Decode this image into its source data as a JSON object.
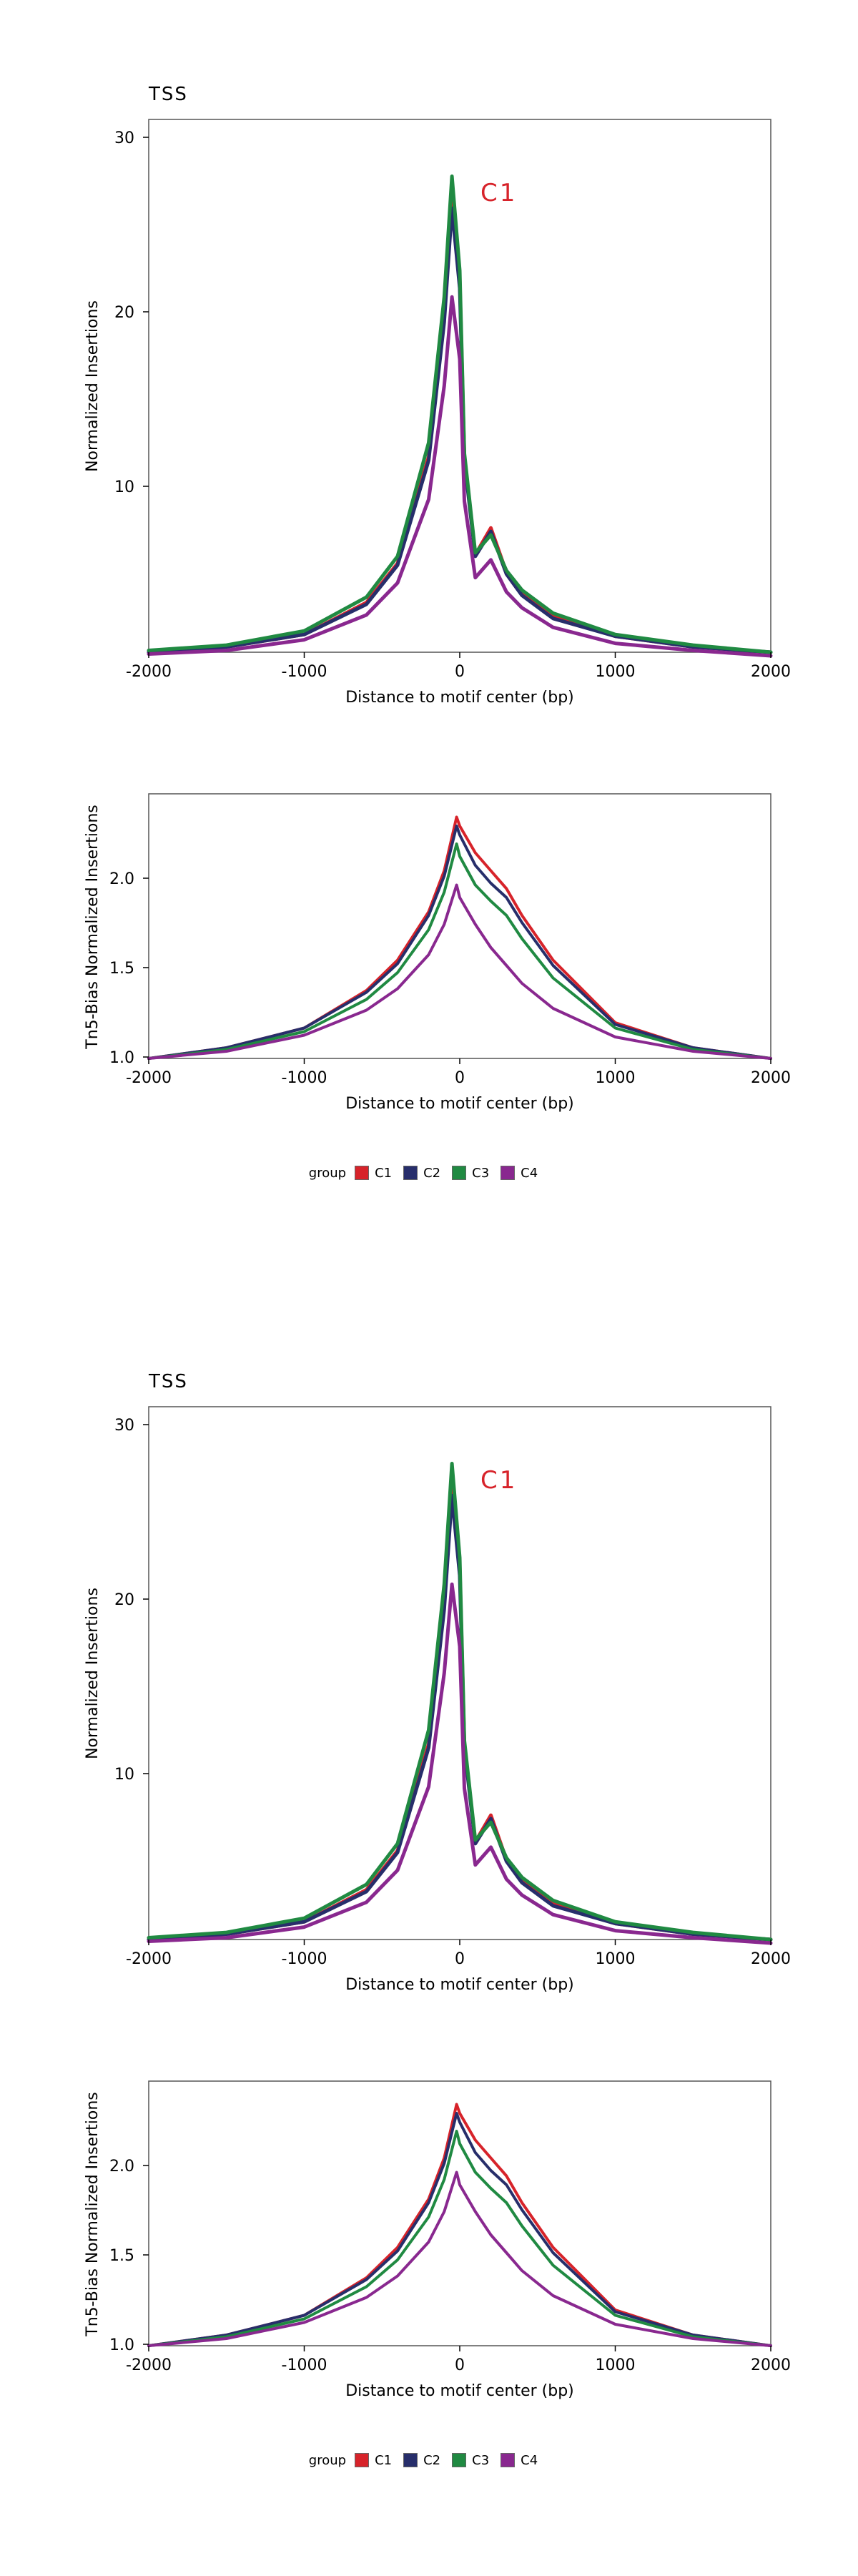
{
  "colors": {
    "C1": "#d7232a",
    "C2": "#272e6b",
    "C3": "#208a42",
    "C4": "#89288f"
  },
  "legend": {
    "title": "group",
    "items": [
      {
        "label": "C1",
        "color": "#d7232a"
      },
      {
        "label": "C2",
        "color": "#272e6b"
      },
      {
        "label": "C3",
        "color": "#208a42"
      },
      {
        "label": "C4",
        "color": "#89288f"
      }
    ]
  },
  "panels": [
    {
      "title": "TSS",
      "annotation": "C1",
      "annotation_color": "#d7232a",
      "top": {
        "xlabel": "Distance to motif center (bp)",
        "ylabel": "Normalized Insertions",
        "xticks": [
          "-2000",
          "-1000",
          "0",
          "1000",
          "2000"
        ],
        "yticks": [
          "10",
          "20",
          "30"
        ]
      },
      "bottom": {
        "xlabel": "Distance to motif center (bp)",
        "ylabel": "Tn5-Bias Normalized Insertions",
        "xticks": [
          "-2000",
          "-1000",
          "0",
          "1000",
          "2000"
        ],
        "yticks": [
          "1.0",
          "1.5",
          "2.0"
        ]
      },
      "legend": {
        "title": "group",
        "items": [
          "C1",
          "C2",
          "C3",
          "C4"
        ]
      }
    },
    {
      "title": "TSS",
      "annotation": "C1",
      "annotation_color": "#d7232a",
      "top": {
        "xlabel": "Distance to motif center (bp)",
        "ylabel": "Normalized Insertions",
        "xticks": [
          "-2000",
          "-1000",
          "0",
          "1000",
          "2000"
        ],
        "yticks": [
          "10",
          "20",
          "30"
        ]
      },
      "bottom": {
        "xlabel": "Distance to motif center (bp)",
        "ylabel": "Tn5-Bias Normalized Insertions",
        "xticks": [
          "-2000",
          "-1000",
          "0",
          "1000",
          "2000"
        ],
        "yticks": [
          "1.0",
          "1.5",
          "2.0"
        ]
      },
      "legend": {
        "title": "group",
        "items": [
          "C1",
          "C2",
          "C3",
          "C4"
        ]
      }
    }
  ],
  "chart_data": [
    {
      "type": "line",
      "title": "TSS",
      "xlabel": "Distance to motif center (bp)",
      "ylabel": "Normalized Insertions",
      "xlim": [
        -2000,
        2000
      ],
      "ylim": [
        1,
        31
      ],
      "x": [
        -2000,
        -1500,
        -1000,
        -600,
        -400,
        -200,
        -100,
        -50,
        0,
        30,
        100,
        200,
        300,
        400,
        600,
        1000,
        1500,
        2000
      ],
      "series": [
        {
          "name": "C1",
          "values": [
            1.0,
            1.3,
            2.0,
            3.8,
            6.0,
            12.0,
            20.0,
            26.5,
            22.0,
            12.0,
            6.5,
            8.0,
            5.5,
            4.3,
            3.0,
            1.9,
            1.3,
            1.0
          ]
        },
        {
          "name": "C2",
          "values": [
            1.0,
            1.3,
            2.0,
            3.7,
            5.9,
            11.8,
            19.6,
            26.0,
            21.5,
            11.8,
            6.4,
            7.8,
            5.4,
            4.2,
            2.9,
            1.9,
            1.3,
            1.0
          ]
        },
        {
          "name": "C3",
          "values": [
            1.1,
            1.4,
            2.2,
            4.1,
            6.4,
            12.8,
            21.0,
            27.8,
            22.5,
            12.2,
            6.6,
            7.6,
            5.6,
            4.5,
            3.2,
            2.0,
            1.4,
            1.0
          ]
        },
        {
          "name": "C4",
          "values": [
            0.9,
            1.1,
            1.7,
            3.1,
            4.9,
            9.6,
            16.0,
            21.0,
            17.5,
            9.5,
            5.2,
            6.2,
            4.4,
            3.5,
            2.4,
            1.5,
            1.1,
            0.8
          ]
        }
      ]
    },
    {
      "type": "line",
      "title": "",
      "xlabel": "Distance to motif center (bp)",
      "ylabel": "Tn5-Bias Normalized Insertions",
      "xlim": [
        -2000,
        2000
      ],
      "ylim": [
        1.0,
        2.48
      ],
      "x": [
        -2000,
        -1500,
        -1000,
        -600,
        -400,
        -200,
        -100,
        -20,
        0,
        100,
        200,
        300,
        400,
        600,
        1000,
        1500,
        2000
      ],
      "series": [
        {
          "name": "C1",
          "values": [
            1.0,
            1.06,
            1.17,
            1.38,
            1.55,
            1.82,
            2.05,
            2.35,
            2.3,
            2.15,
            2.05,
            1.95,
            1.8,
            1.55,
            1.2,
            1.06,
            1.0
          ]
        },
        {
          "name": "C2",
          "values": [
            1.0,
            1.06,
            1.17,
            1.37,
            1.53,
            1.8,
            2.02,
            2.3,
            2.25,
            2.08,
            1.98,
            1.9,
            1.76,
            1.52,
            1.19,
            1.06,
            1.0
          ]
        },
        {
          "name": "C3",
          "values": [
            1.0,
            1.05,
            1.15,
            1.33,
            1.48,
            1.72,
            1.93,
            2.2,
            2.13,
            1.97,
            1.88,
            1.8,
            1.67,
            1.45,
            1.17,
            1.05,
            1.0
          ]
        },
        {
          "name": "C4",
          "values": [
            1.0,
            1.04,
            1.13,
            1.27,
            1.39,
            1.58,
            1.75,
            1.97,
            1.9,
            1.75,
            1.62,
            1.52,
            1.42,
            1.28,
            1.12,
            1.04,
            1.0
          ]
        }
      ]
    },
    {
      "type": "line",
      "title": "TSS",
      "xlabel": "Distance to motif center (bp)",
      "ylabel": "Normalized Insertions",
      "xlim": [
        -2000,
        2000
      ],
      "ylim": [
        1,
        31
      ],
      "x": [
        -2000,
        -1500,
        -1000,
        -600,
        -400,
        -200,
        -100,
        -50,
        0,
        30,
        100,
        200,
        300,
        400,
        600,
        1000,
        1500,
        2000
      ],
      "series": [
        {
          "name": "C1",
          "values": [
            1.0,
            1.3,
            2.0,
            3.8,
            6.0,
            12.0,
            20.0,
            26.5,
            22.0,
            12.0,
            6.5,
            8.0,
            5.5,
            4.3,
            3.0,
            1.9,
            1.3,
            1.0
          ]
        },
        {
          "name": "C2",
          "values": [
            1.0,
            1.3,
            2.0,
            3.7,
            5.9,
            11.8,
            19.6,
            26.0,
            21.5,
            11.8,
            6.4,
            7.8,
            5.4,
            4.2,
            2.9,
            1.9,
            1.3,
            1.0
          ]
        },
        {
          "name": "C3",
          "values": [
            1.1,
            1.4,
            2.2,
            4.1,
            6.4,
            12.8,
            21.0,
            27.8,
            22.5,
            12.2,
            6.6,
            7.6,
            5.6,
            4.5,
            3.2,
            2.0,
            1.4,
            1.0
          ]
        },
        {
          "name": "C4",
          "values": [
            0.9,
            1.1,
            1.7,
            3.1,
            4.9,
            9.6,
            16.0,
            21.0,
            17.5,
            9.5,
            5.2,
            6.2,
            4.4,
            3.5,
            2.4,
            1.5,
            1.1,
            0.8
          ]
        }
      ]
    },
    {
      "type": "line",
      "title": "",
      "xlabel": "Distance to motif center (bp)",
      "ylabel": "Tn5-Bias Normalized Insertions",
      "xlim": [
        -2000,
        2000
      ],
      "ylim": [
        1.0,
        2.48
      ],
      "x": [
        -2000,
        -1500,
        -1000,
        -600,
        -400,
        -200,
        -100,
        -20,
        0,
        100,
        200,
        300,
        400,
        600,
        1000,
        1500,
        2000
      ],
      "series": [
        {
          "name": "C1",
          "values": [
            1.0,
            1.06,
            1.17,
            1.38,
            1.55,
            1.82,
            2.05,
            2.35,
            2.3,
            2.15,
            2.05,
            1.95,
            1.8,
            1.55,
            1.2,
            1.06,
            1.0
          ]
        },
        {
          "name": "C2",
          "values": [
            1.0,
            1.06,
            1.17,
            1.37,
            1.53,
            1.8,
            2.02,
            2.3,
            2.25,
            2.08,
            1.98,
            1.9,
            1.76,
            1.52,
            1.19,
            1.06,
            1.0
          ]
        },
        {
          "name": "C3",
          "values": [
            1.0,
            1.05,
            1.15,
            1.33,
            1.48,
            1.72,
            1.93,
            2.2,
            2.13,
            1.97,
            1.88,
            1.8,
            1.67,
            1.45,
            1.17,
            1.05,
            1.0
          ]
        },
        {
          "name": "C4",
          "values": [
            1.0,
            1.04,
            1.13,
            1.27,
            1.39,
            1.58,
            1.75,
            1.97,
            1.9,
            1.75,
            1.62,
            1.52,
            1.42,
            1.28,
            1.12,
            1.04,
            1.0
          ]
        }
      ]
    }
  ]
}
